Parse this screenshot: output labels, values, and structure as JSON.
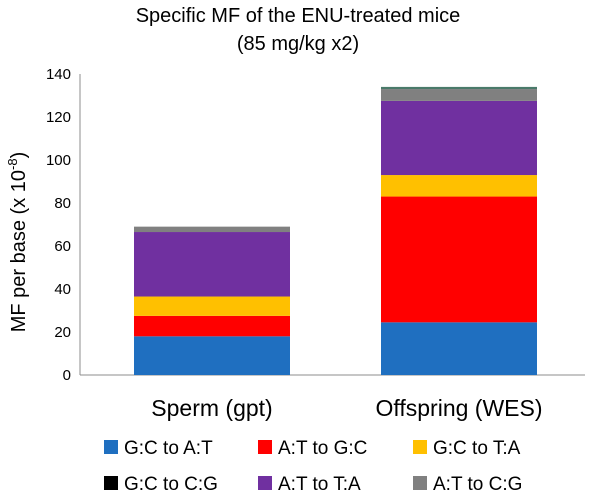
{
  "chart_data": {
    "type": "bar",
    "stacked": true,
    "title": [
      "Specific MF of the ENU-treated mice",
      "(85 mg/kg x2)"
    ],
    "ylabel": "MF per base (x 10",
    "ylabel_exponent": "-8",
    "ylabel_close": ")",
    "ylim": [
      0,
      140
    ],
    "yticks": [
      0,
      20,
      40,
      60,
      80,
      100,
      120,
      140
    ],
    "categories": [
      "Sperm (gpt)",
      "Offspring (WES)"
    ],
    "grid": false,
    "legend_position": "bottom",
    "series": [
      {
        "name": "G:C to A:T",
        "color": "#1f6fc0",
        "values": [
          18,
          24.5
        ]
      },
      {
        "name": "A:T to G:C",
        "color": "#ff0000",
        "values": [
          9.5,
          58.5
        ]
      },
      {
        "name": "G:C to T:A",
        "color": "#ffc000",
        "values": [
          9,
          10
        ]
      },
      {
        "name": "G:C to C:G",
        "color": "#000000",
        "values": [
          0,
          0
        ]
      },
      {
        "name": "A:T to T:A",
        "color": "#7030a0",
        "values": [
          30,
          34.5
        ]
      },
      {
        "name": "A:T to C:G",
        "color": "#808080",
        "values": [
          2.5,
          5.5
        ]
      }
    ],
    "top_band": {
      "color": "#4a7a6a",
      "values": [
        0,
        1
      ]
    }
  }
}
